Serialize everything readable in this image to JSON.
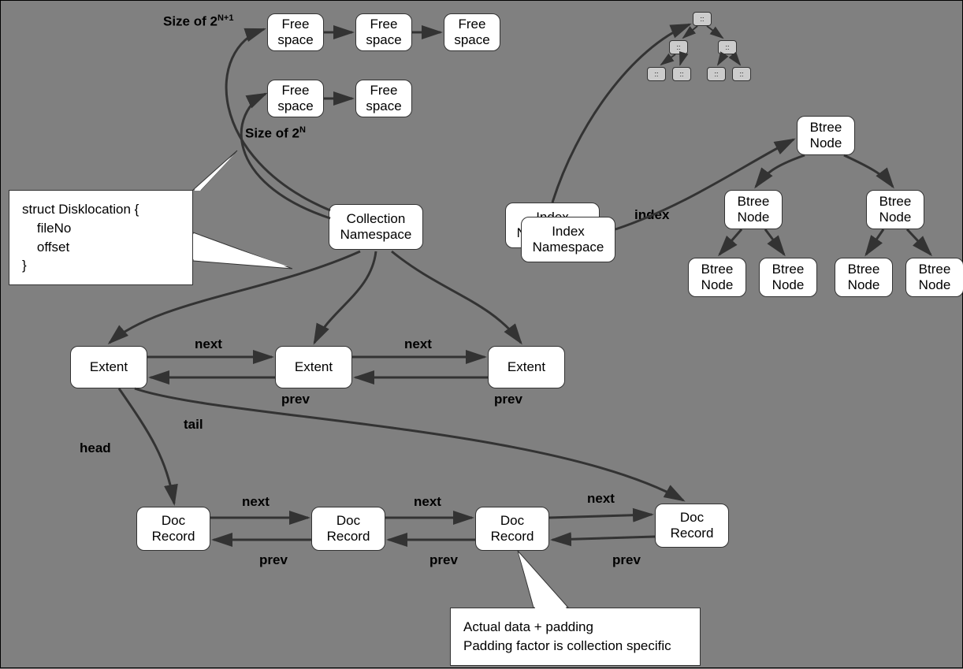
{
  "type": "diagram",
  "background_color": "#808080",
  "node_bg": "#ffffff",
  "node_border": "#333333",
  "mini_node_bg": "#cccccc",
  "arrow_color": "#333333",
  "freespace": {
    "row1": [
      "Free\nspace",
      "Free\nspace",
      "Free\nspace"
    ],
    "row2": [
      "Free\nspace",
      "Free\nspace"
    ]
  },
  "size_label_top": "Size of 2",
  "size_label_top_sup": "N+1",
  "size_label_bottom": "Size of 2",
  "size_label_bottom_sup": "N",
  "callout_left": "struct Disklocation {\n    fileNo\n    offset\n}",
  "collection": "Collection\nNamespace",
  "index_ns_back": "Index\nNamespace",
  "index_ns_front": "Index\nNamespace",
  "index_label": "index",
  "btree_root": "Btree\nNode",
  "btree_l2a": "Btree\nNode",
  "btree_l2b": "Btree\nNode",
  "btree_l3a": "Btree\nNode",
  "btree_l3b": "Btree\nNode",
  "btree_l3c": "Btree\nNode",
  "btree_l3d": "Btree\nNode",
  "extent": [
    "Extent",
    "Extent",
    "Extent"
  ],
  "next_label": "next",
  "prev_label": "prev",
  "head_label": "head",
  "tail_label": "tail",
  "doc_record": [
    "Doc\nRecord",
    "Doc\nRecord",
    "Doc\nRecord",
    "Doc\nRecord"
  ],
  "callout_bottom": "Actual data + padding\nPadding factor is collection specific",
  "mini_tree_label": "::"
}
